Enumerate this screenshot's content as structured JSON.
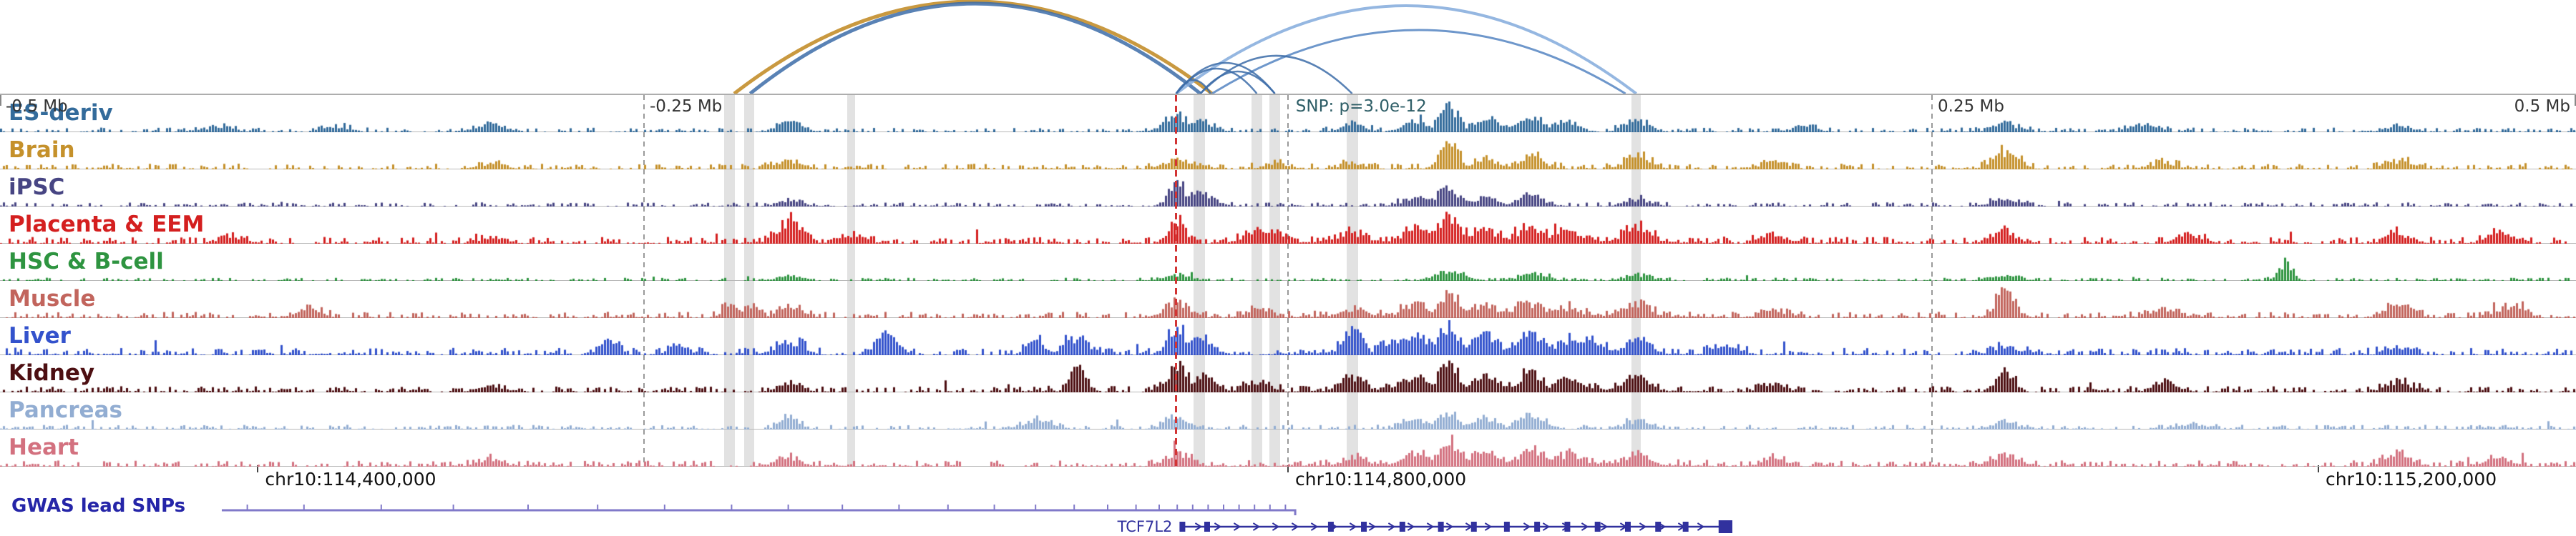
{
  "chart_data": {
    "type": "genome-browser",
    "axis": {
      "tick_labels": [
        {
          "text": "-0.5 Mb",
          "x": 0.0,
          "anchor": "start"
        },
        {
          "text": "-0.25 Mb",
          "x": 0.25,
          "anchor": "start"
        },
        {
          "text": "0.25 Mb",
          "x": 0.75,
          "anchor": "start"
        },
        {
          "text": "0.5 Mb",
          "x": 1.0,
          "anchor": "end"
        }
      ],
      "gridline_positions": [
        0.25,
        0.5,
        0.75
      ],
      "gridline_color": "#9a9a9a",
      "label_color": "#333333"
    },
    "snp": {
      "label": "SNP: p=3.0e-12",
      "label_x": 0.503,
      "label_color": "#2d5d66",
      "line_x": 0.4566,
      "line_color": "#d23434"
    },
    "highlights": [
      {
        "x": 0.2832,
        "w": 0.004
      },
      {
        "x": 0.2908,
        "w": 0.004
      },
      {
        "x": 0.3304,
        "w": 0.0032
      },
      {
        "x": 0.4656,
        "w": 0.0045
      },
      {
        "x": 0.4879,
        "w": 0.004
      },
      {
        "x": 0.4949,
        "w": 0.004
      },
      {
        "x": 0.5249,
        "w": 0.0045
      },
      {
        "x": 0.6352,
        "w": 0.0036
      }
    ],
    "arcs": [
      {
        "x1": 0.285,
        "x2": 0.4705,
        "apex": 2,
        "color": "#c0871f",
        "width": 5
      },
      {
        "x1": 0.2912,
        "x2": 0.466,
        "apex": 5,
        "color": "#3c6ca8",
        "width": 5
      },
      {
        "x1": 0.4566,
        "x2": 0.6352,
        "apex": 8,
        "color": "#82aadc",
        "width": 4
      },
      {
        "x1": 0.4705,
        "x2": 0.631,
        "apex": 42,
        "color": "#5585c2",
        "width": 3
      },
      {
        "x1": 0.4566,
        "x2": 0.47,
        "apex": 112,
        "color": "#3c6ca8",
        "width": 2.5
      },
      {
        "x1": 0.4566,
        "x2": 0.4879,
        "apex": 96,
        "color": "#3c6ca8",
        "width": 2.5
      },
      {
        "x1": 0.4566,
        "x2": 0.4949,
        "apex": 88,
        "color": "#3c6ca8",
        "width": 2.5
      },
      {
        "x1": 0.466,
        "x2": 0.4949,
        "apex": 100,
        "color": "#3c6ca8",
        "width": 2.5
      },
      {
        "x1": 0.466,
        "x2": 0.5249,
        "apex": 78,
        "color": "#3c6ca8",
        "width": 2.5
      }
    ],
    "tracks": [
      {
        "name": "ES-deriv",
        "color": "#336b9b",
        "noise": 0.09,
        "peaks": [
          [
            0.085,
            0.18
          ],
          [
            0.13,
            0.2
          ],
          [
            0.19,
            0.28
          ],
          [
            0.306,
            0.3
          ],
          [
            0.4566,
            0.55
          ],
          [
            0.466,
            0.38
          ],
          [
            0.5249,
            0.25
          ],
          [
            0.549,
            0.3
          ],
          [
            0.562,
            0.88,
            14
          ],
          [
            0.576,
            0.45
          ],
          [
            0.594,
            0.55
          ],
          [
            0.608,
            0.3
          ],
          [
            0.6352,
            0.35
          ],
          [
            0.7,
            0.2
          ],
          [
            0.778,
            0.3
          ],
          [
            0.832,
            0.28
          ],
          [
            0.931,
            0.22
          ]
        ]
      },
      {
        "name": "Brain",
        "color": "#c5912b",
        "noise": 0.11,
        "peaks": [
          [
            0.19,
            0.2
          ],
          [
            0.306,
            0.28
          ],
          [
            0.4566,
            0.32
          ],
          [
            0.4949,
            0.2
          ],
          [
            0.5249,
            0.22
          ],
          [
            0.562,
            0.92,
            13
          ],
          [
            0.576,
            0.35
          ],
          [
            0.594,
            0.42
          ],
          [
            0.6352,
            0.5
          ],
          [
            0.688,
            0.25
          ],
          [
            0.778,
            0.6
          ],
          [
            0.84,
            0.2
          ],
          [
            0.931,
            0.28
          ]
        ]
      },
      {
        "name": "iPSC",
        "color": "#474583",
        "noise": 0.08,
        "peaks": [
          [
            0.306,
            0.2
          ],
          [
            0.4566,
            0.82,
            12
          ],
          [
            0.466,
            0.45
          ],
          [
            0.549,
            0.3
          ],
          [
            0.562,
            0.55
          ],
          [
            0.576,
            0.3
          ],
          [
            0.594,
            0.38
          ],
          [
            0.6352,
            0.25
          ],
          [
            0.778,
            0.26
          ]
        ]
      },
      {
        "name": "Placenta & EEM",
        "color": "#d41f1f",
        "noise": 0.13,
        "peaks": [
          [
            0.09,
            0.2
          ],
          [
            0.19,
            0.22
          ],
          [
            0.306,
            0.78,
            16
          ],
          [
            0.33,
            0.3
          ],
          [
            0.4566,
            0.85,
            12
          ],
          [
            0.4879,
            0.45
          ],
          [
            0.4949,
            0.4
          ],
          [
            0.5249,
            0.35
          ],
          [
            0.549,
            0.5
          ],
          [
            0.562,
            0.92,
            16
          ],
          [
            0.576,
            0.5
          ],
          [
            0.58,
            0.18,
            150
          ],
          [
            0.594,
            0.62
          ],
          [
            0.608,
            0.4
          ],
          [
            0.6352,
            0.55
          ],
          [
            0.688,
            0.3
          ],
          [
            0.778,
            0.38
          ],
          [
            0.85,
            0.3
          ],
          [
            0.931,
            0.32
          ],
          [
            0.97,
            0.35
          ]
        ]
      },
      {
        "name": "HSC & B-cell",
        "color": "#2e9440",
        "noise": 0.06,
        "peaks": [
          [
            0.306,
            0.15
          ],
          [
            0.4566,
            0.2
          ],
          [
            0.562,
            0.35
          ],
          [
            0.594,
            0.25
          ],
          [
            0.6352,
            0.2
          ],
          [
            0.778,
            0.15
          ],
          [
            0.887,
            0.6,
            10
          ]
        ]
      },
      {
        "name": "Muscle",
        "color": "#c2655d",
        "noise": 0.12,
        "peaks": [
          [
            0.12,
            0.25
          ],
          [
            0.2832,
            0.45,
            12
          ],
          [
            0.2912,
            0.4,
            12
          ],
          [
            0.306,
            0.38
          ],
          [
            0.4566,
            0.5
          ],
          [
            0.4879,
            0.3
          ],
          [
            0.5249,
            0.32
          ],
          [
            0.549,
            0.42
          ],
          [
            0.562,
            0.82,
            15
          ],
          [
            0.576,
            0.45
          ],
          [
            0.58,
            0.16,
            150
          ],
          [
            0.594,
            0.52
          ],
          [
            0.608,
            0.35
          ],
          [
            0.6352,
            0.45
          ],
          [
            0.688,
            0.25
          ],
          [
            0.778,
            0.88,
            13
          ],
          [
            0.84,
            0.3
          ],
          [
            0.931,
            0.52
          ],
          [
            0.975,
            0.4
          ]
        ]
      },
      {
        "name": "Liver",
        "color": "#3352cc",
        "noise": 0.14,
        "peaks": [
          [
            0.236,
            0.5,
            12
          ],
          [
            0.263,
            0.45,
            12
          ],
          [
            0.306,
            0.5
          ],
          [
            0.344,
            0.75,
            14
          ],
          [
            0.402,
            0.55,
            12
          ],
          [
            0.418,
            0.5
          ],
          [
            0.4566,
            0.95,
            13
          ],
          [
            0.466,
            0.5
          ],
          [
            0.5249,
            0.9,
            13
          ],
          [
            0.54,
            0.5
          ],
          [
            0.549,
            0.6
          ],
          [
            0.562,
            0.9,
            15
          ],
          [
            0.576,
            0.65
          ],
          [
            0.58,
            0.2,
            150
          ],
          [
            0.594,
            0.7
          ],
          [
            0.608,
            0.5
          ],
          [
            0.617,
            0.55
          ],
          [
            0.6352,
            0.5
          ],
          [
            0.67,
            0.3
          ],
          [
            0.778,
            0.3
          ],
          [
            0.931,
            0.25
          ]
        ]
      },
      {
        "name": "Kidney",
        "color": "#4d0f12",
        "noise": 0.12,
        "peaks": [
          [
            0.19,
            0.2
          ],
          [
            0.306,
            0.25
          ],
          [
            0.418,
            0.78,
            12
          ],
          [
            0.4566,
            0.95,
            13
          ],
          [
            0.466,
            0.5
          ],
          [
            0.4879,
            0.35
          ],
          [
            0.5249,
            0.5
          ],
          [
            0.549,
            0.55
          ],
          [
            0.562,
            0.88,
            15
          ],
          [
            0.576,
            0.55
          ],
          [
            0.58,
            0.18,
            150
          ],
          [
            0.594,
            0.82,
            13
          ],
          [
            0.608,
            0.45
          ],
          [
            0.6352,
            0.45
          ],
          [
            0.688,
            0.3
          ],
          [
            0.778,
            0.82,
            12
          ],
          [
            0.84,
            0.3
          ],
          [
            0.931,
            0.35
          ]
        ]
      },
      {
        "name": "Pancreas",
        "color": "#92add2",
        "noise": 0.09,
        "peaks": [
          [
            0.306,
            0.5,
            12
          ],
          [
            0.402,
            0.35
          ],
          [
            0.4566,
            0.35
          ],
          [
            0.549,
            0.3
          ],
          [
            0.562,
            0.58,
            14
          ],
          [
            0.576,
            0.35
          ],
          [
            0.594,
            0.45
          ],
          [
            0.6352,
            0.3
          ],
          [
            0.778,
            0.25
          ],
          [
            0.85,
            0.2
          ]
        ]
      },
      {
        "name": "Heart",
        "color": "#d3717f",
        "noise": 0.12,
        "peaks": [
          [
            0.19,
            0.2
          ],
          [
            0.306,
            0.3
          ],
          [
            0.4566,
            0.45
          ],
          [
            0.5249,
            0.3
          ],
          [
            0.549,
            0.42
          ],
          [
            0.562,
            0.85,
            15
          ],
          [
            0.576,
            0.5
          ],
          [
            0.58,
            0.18,
            150
          ],
          [
            0.594,
            0.55
          ],
          [
            0.608,
            0.4
          ],
          [
            0.6352,
            0.45
          ],
          [
            0.688,
            0.25
          ],
          [
            0.778,
            0.42
          ],
          [
            0.931,
            0.45
          ],
          [
            0.97,
            0.3
          ]
        ]
      }
    ],
    "coordinates": [
      {
        "text": "chr10:114,400,000",
        "x": 0.1001
      },
      {
        "text": "chr10:114,800,000",
        "x": 0.5
      },
      {
        "text": "chr10:115,200,000",
        "x": 0.9
      }
    ],
    "gwas": {
      "label": "GWAS lead SNPs",
      "label_color": "#2525a8",
      "line_color": "#8079c9",
      "line_start": 0.0861,
      "line_end": 0.5028,
      "snp_ticks": [
        0.096,
        0.118,
        0.148,
        0.176,
        0.205,
        0.232,
        0.258,
        0.284,
        0.306,
        0.327,
        0.349,
        0.368,
        0.386,
        0.402,
        0.417,
        0.43,
        0.441,
        0.45,
        0.457,
        0.463,
        0.469,
        0.475,
        0.481,
        0.487,
        0.493,
        0.499
      ]
    },
    "gene": {
      "name": "TCF7L2",
      "color": "#31319e",
      "strand": "+",
      "start": 0.459,
      "end": 0.6725,
      "exons": [
        0.0,
        0.045,
        0.27,
        0.33,
        0.4,
        0.47,
        0.53,
        0.59,
        0.645,
        0.7,
        0.755,
        0.81,
        0.865,
        0.915
      ],
      "end_block": {
        "x": 0.975,
        "w": 0.025
      }
    }
  }
}
